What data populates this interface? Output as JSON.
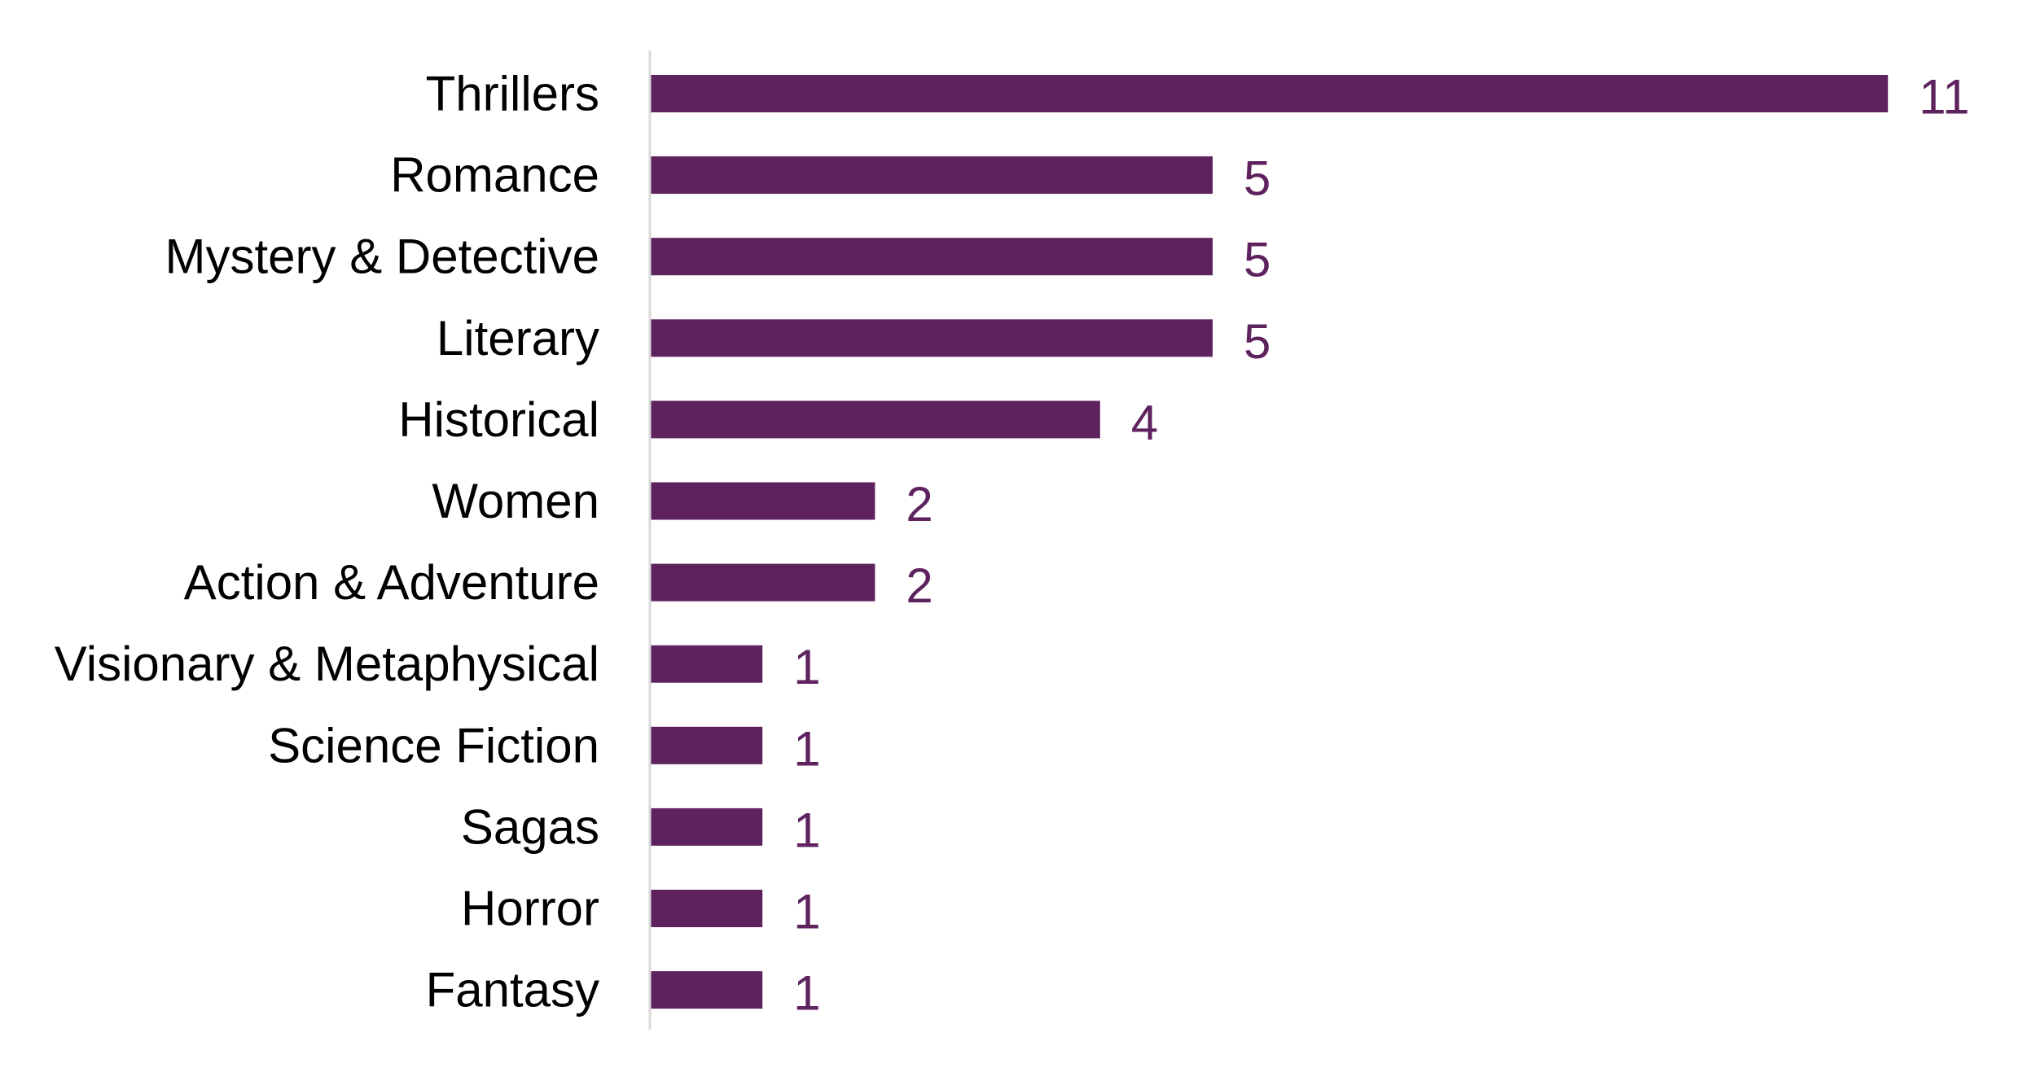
{
  "chart_data": {
    "type": "bar",
    "orientation": "horizontal",
    "title": "",
    "xlabel": "",
    "ylabel": "",
    "categories": [
      "Thrillers",
      "Romance",
      "Mystery & Detective",
      "Literary",
      "Historical",
      "Women",
      "Action & Adventure",
      "Visionary & Metaphysical",
      "Science Fiction",
      "Sagas",
      "Horror",
      "Fantasy"
    ],
    "values": [
      11,
      5,
      5,
      5,
      4,
      2,
      2,
      1,
      1,
      1,
      1,
      1
    ],
    "xlim": [
      0,
      11
    ],
    "grid": false,
    "legend": "none",
    "data_labels": true,
    "colors": {
      "bar": "#5E235E",
      "value_label": "#5E235E",
      "axis_line": "#D9D9D9",
      "category_label": "#000000"
    }
  }
}
